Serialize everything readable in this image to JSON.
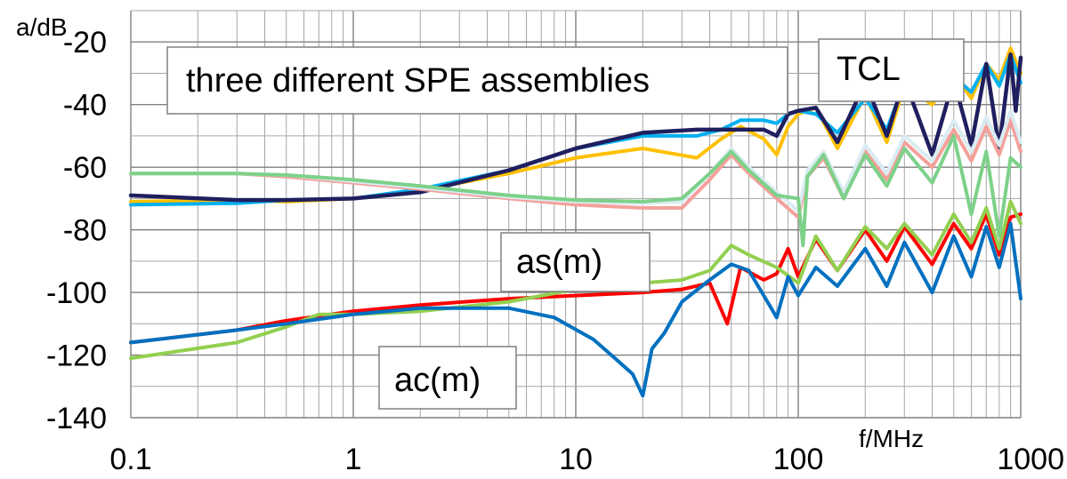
{
  "chart_data": {
    "type": "line",
    "title": "",
    "xlabel": "f/MHz",
    "ylabel": "a/dB",
    "x_scale": "log",
    "xlim": [
      0.1,
      1000
    ],
    "ylim": [
      -140,
      -10
    ],
    "x_ticks": [
      0.1,
      1,
      10,
      100,
      1000
    ],
    "x_tick_labels": [
      "0.1",
      "1",
      "10",
      "100",
      "1000"
    ],
    "y_ticks": [
      -20,
      -40,
      -60,
      -80,
      -100,
      -120,
      -140
    ],
    "y_tick_labels": [
      "-20",
      "-40",
      "-60",
      "-80",
      "-100",
      "-120",
      "-140"
    ],
    "grid": true,
    "legend": "none",
    "annotations": [
      {
        "text": "three different SPE assemblies",
        "x": 0.25,
        "y": -24
      },
      {
        "text": "TCL",
        "x": 230,
        "y": -21
      },
      {
        "text": "as(m)",
        "x": 2.9,
        "y": -84
      },
      {
        "text": "ac(m)",
        "x": 4.1,
        "y": -125
      }
    ],
    "series": [
      {
        "group": "TCL",
        "color": "#ffc000",
        "x": [
          0.1,
          0.3,
          0.5,
          1,
          2,
          5,
          10,
          20,
          35,
          45,
          55,
          70,
          80,
          90,
          100,
          120,
          150,
          200,
          250,
          300,
          400,
          500,
          600,
          700,
          800,
          900,
          1000
        ],
        "y": [
          -71,
          -70.5,
          -71,
          -70,
          -67.5,
          -62,
          -57,
          -54,
          -57,
          -51,
          -47,
          -51,
          -56,
          -47,
          -43,
          -41,
          -54,
          -37,
          -52,
          -34,
          -40,
          -30,
          -38,
          -27,
          -32,
          -22,
          -30
        ]
      },
      {
        "group": "TCL",
        "color": "#00b0f0",
        "x": [
          0.1,
          0.3,
          0.5,
          1,
          2,
          5,
          10,
          20,
          35,
          45,
          55,
          70,
          80,
          90,
          100,
          120,
          150,
          200,
          250,
          300,
          400,
          500,
          600,
          700,
          800,
          900,
          1000
        ],
        "y": [
          -72,
          -71.5,
          -70.5,
          -70,
          -67,
          -61,
          -54,
          -50,
          -50,
          -48,
          -45,
          -45,
          -46,
          -43,
          -42,
          -43,
          -49,
          -38,
          -48,
          -33,
          -38,
          -31,
          -36,
          -27,
          -34,
          -24,
          -33
        ]
      },
      {
        "group": "TCL",
        "color": "#1f1f5f",
        "x": [
          0.1,
          0.3,
          0.5,
          1,
          2,
          5,
          10,
          20,
          35,
          45,
          55,
          70,
          80,
          90,
          100,
          120,
          150,
          200,
          250,
          300,
          400,
          500,
          600,
          700,
          800,
          900,
          950,
          1000
        ],
        "y": [
          -69,
          -70.5,
          -70.5,
          -70,
          -68,
          -61,
          -54,
          -49,
          -48,
          -48,
          -48,
          -48,
          -50,
          -43,
          -42,
          -41,
          -52,
          -33,
          -50,
          -32,
          -56,
          -32,
          -53,
          -27,
          -54,
          -24,
          -42,
          -25
        ]
      },
      {
        "group": "as(m)",
        "color": "#f4a09a",
        "x": [
          0.1,
          0.3,
          0.5,
          1,
          2,
          5,
          10,
          20,
          30,
          40,
          50,
          60,
          80,
          100,
          110,
          130,
          160,
          200,
          250,
          300,
          400,
          500,
          600,
          700,
          800,
          900,
          1000
        ],
        "y": [
          -62,
          -62,
          -63,
          -65,
          -67,
          -70,
          -72,
          -73,
          -73,
          -64,
          -56,
          -62,
          -70,
          -76,
          -63,
          -57,
          -70,
          -55,
          -64,
          -52,
          -60,
          -48,
          -58,
          -47,
          -56,
          -45,
          -55
        ]
      },
      {
        "group": "as(m)",
        "color": "#d9ecf2",
        "x": [
          0.1,
          0.3,
          0.5,
          1,
          2,
          5,
          10,
          20,
          30,
          40,
          50,
          60,
          80,
          100,
          110,
          130,
          160,
          200,
          250,
          300,
          400,
          500,
          600,
          700,
          800,
          900,
          1000
        ],
        "y": [
          -62,
          -62,
          -62.5,
          -64.5,
          -66.5,
          -69.5,
          -71,
          -71.5,
          -71,
          -62,
          -54,
          -60,
          -68,
          -74,
          -61,
          -55,
          -68,
          -53,
          -62,
          -50,
          -58,
          -45,
          -55,
          -44,
          -53,
          -42,
          -52
        ]
      },
      {
        "group": "as(m)",
        "color": "#7dd189",
        "x": [
          0.1,
          0.3,
          0.5,
          1,
          2,
          5,
          10,
          20,
          30,
          40,
          50,
          60,
          80,
          100,
          105,
          110,
          130,
          160,
          200,
          250,
          300,
          400,
          500,
          600,
          700,
          800,
          900,
          1000
        ],
        "y": [
          -62,
          -62,
          -62.5,
          -64,
          -66,
          -69,
          -70.5,
          -71,
          -70,
          -62,
          -55,
          -61,
          -69,
          -70,
          -85,
          -63,
          -56,
          -70,
          -56,
          -66,
          -54,
          -65,
          -50,
          -75,
          -55,
          -82,
          -57,
          -60
        ]
      },
      {
        "group": "ac(m)",
        "color": "#ff0000",
        "x": [
          0.1,
          0.3,
          0.5,
          1,
          2,
          5,
          10,
          20,
          30,
          40,
          48,
          55,
          70,
          80,
          90,
          100,
          120,
          150,
          200,
          250,
          300,
          400,
          500,
          600,
          700,
          800,
          900,
          1000
        ],
        "y": [
          -116,
          -112,
          -109,
          -106,
          -104,
          -102,
          -101,
          -100,
          -99,
          -97,
          -110,
          -92,
          -96,
          -94,
          -86,
          -95,
          -83,
          -93,
          -80,
          -90,
          -79,
          -91,
          -78,
          -86,
          -75,
          -88,
          -76,
          -75
        ]
      },
      {
        "group": "ac(m)",
        "color": "#92d050",
        "x": [
          0.1,
          0.3,
          0.5,
          0.7,
          1,
          2,
          5,
          10,
          20,
          30,
          40,
          50,
          60,
          80,
          100,
          120,
          150,
          200,
          250,
          300,
          400,
          500,
          600,
          700,
          800,
          900,
          1000
        ],
        "y": [
          -121,
          -116,
          -111,
          -107,
          -107,
          -106,
          -103,
          -99,
          -97,
          -96,
          -93,
          -85,
          -88,
          -92,
          -97,
          -82,
          -93,
          -79,
          -86,
          -78,
          -88,
          -75,
          -84,
          -73,
          -86,
          -71,
          -78
        ]
      },
      {
        "group": "ac(m)",
        "color": "#0070c0",
        "x": [
          0.1,
          0.3,
          0.5,
          1,
          2,
          5,
          8,
          12,
          15,
          18,
          20,
          22,
          25,
          30,
          40,
          50,
          60,
          70,
          80,
          90,
          100,
          120,
          150,
          200,
          250,
          300,
          400,
          500,
          600,
          700,
          800,
          900,
          1000
        ],
        "y": [
          -116,
          -112,
          -110,
          -107,
          -105,
          -105,
          -108,
          -115,
          -121,
          -126,
          -133,
          -118,
          -113,
          -103,
          -96,
          -91,
          -93,
          -101,
          -108,
          -95,
          -101,
          -92,
          -98,
          -86,
          -98,
          -84,
          -100,
          -82,
          -95,
          -79,
          -92,
          -78,
          -102
        ]
      }
    ]
  }
}
